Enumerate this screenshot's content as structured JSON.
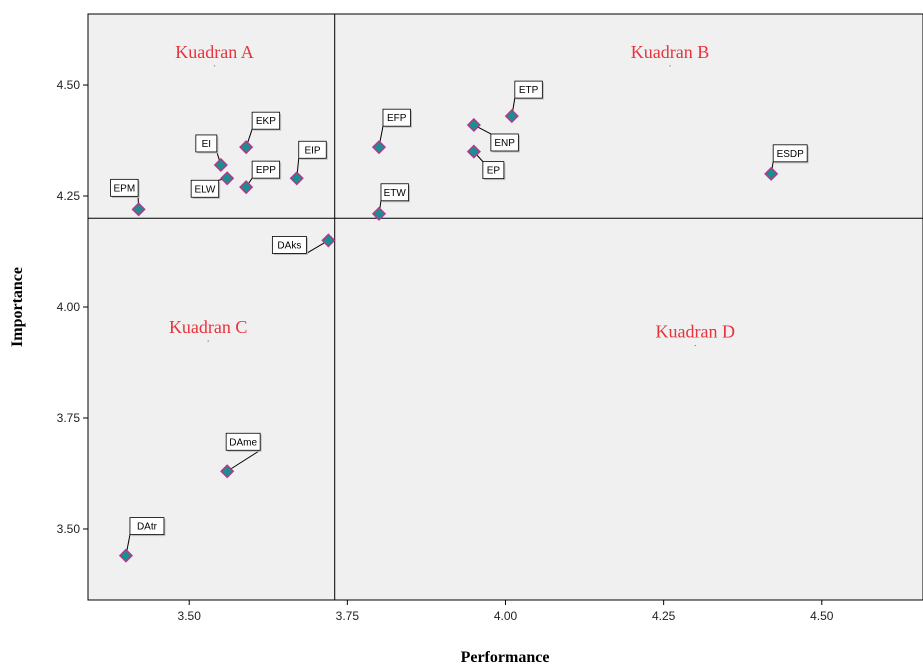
{
  "chart_data": {
    "type": "scatter",
    "xlabel": "Performance",
    "ylabel": "Importance",
    "xlim": [
      3.34,
      4.66
    ],
    "ylim": [
      3.34,
      4.66
    ],
    "x_ticks": [
      3.5,
      3.75,
      4.0,
      4.25,
      4.5
    ],
    "x_tick_labels": [
      "3.50",
      "3.75",
      "4.00",
      "4.25",
      "4.50"
    ],
    "y_ticks": [
      3.5,
      3.75,
      4.0,
      4.25,
      4.5
    ],
    "y_tick_labels": [
      "3.50",
      "3.75",
      "4.00",
      "4.25",
      "4.50"
    ],
    "ref_lines": {
      "x": 3.73,
      "y": 4.2
    },
    "grid": false,
    "marker_fill": "#1a8f8f",
    "marker_stroke": "#b03a8c",
    "quadrant_color": "#e8323c",
    "plot_bg": "#f0f0f0",
    "quadrants": [
      {
        "label": "Kuadran A",
        "x": 3.54,
        "y": 4.55
      },
      {
        "label": "Kuadran B",
        "x": 4.26,
        "y": 4.55
      },
      {
        "label": "Kuadran C",
        "x": 3.53,
        "y": 3.93
      },
      {
        "label": "Kuadran D",
        "x": 4.3,
        "y": 3.92
      }
    ],
    "points": [
      {
        "label": "EPM",
        "x": 3.42,
        "y": 4.22
      },
      {
        "label": "EI",
        "x": 3.55,
        "y": 4.32
      },
      {
        "label": "ELW",
        "x": 3.56,
        "y": 4.29
      },
      {
        "label": "EKP",
        "x": 3.59,
        "y": 4.36
      },
      {
        "label": "EPP",
        "x": 3.59,
        "y": 4.27
      },
      {
        "label": "EIP",
        "x": 3.67,
        "y": 4.29
      },
      {
        "label": "DAks",
        "x": 3.72,
        "y": 4.15
      },
      {
        "label": "EFP",
        "x": 3.8,
        "y": 4.36
      },
      {
        "label": "ETW",
        "x": 3.8,
        "y": 4.21
      },
      {
        "label": "ENP",
        "x": 3.95,
        "y": 4.41
      },
      {
        "label": "EP",
        "x": 3.95,
        "y": 4.35
      },
      {
        "label": "ETP",
        "x": 4.01,
        "y": 4.43
      },
      {
        "label": "ESDP",
        "x": 4.42,
        "y": 4.3
      },
      {
        "label": "DAme",
        "x": 3.56,
        "y": 3.63
      },
      {
        "label": "DAtr",
        "x": 3.4,
        "y": 3.44
      }
    ]
  }
}
